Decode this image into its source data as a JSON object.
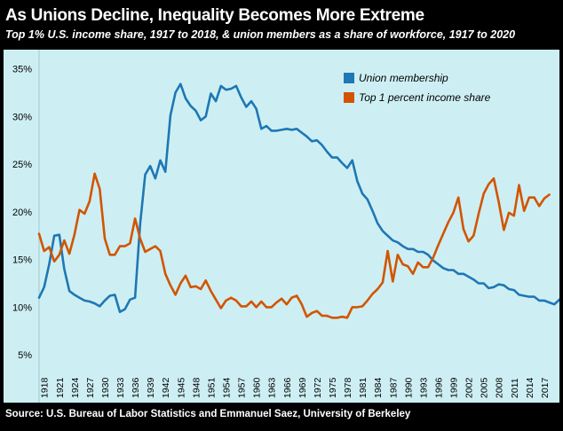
{
  "header": {
    "title": "As Unions Decline, Inequality Becomes More Extreme",
    "subtitle": "Top 1% U.S. income share, 1917 to 2018, & union members as a share of workforce, 1917 to 2020"
  },
  "footer": {
    "source": "Source: U.S. Bureau of Labor Statistics and Emmanuel Saez, University of Berkeley"
  },
  "colors": {
    "frame": "#000000",
    "plot_background": "#cdeff3",
    "union": "#1f77b4",
    "income": "#d35400",
    "text_light": "#ffffff"
  },
  "chart_data": {
    "type": "line",
    "title": "As Unions Decline, Inequality Becomes More Extreme",
    "subtitle": "Top 1% U.S. income share, 1917 to 2018, & union members as a share of workforce, 1917 to 2020",
    "xlabel": "",
    "ylabel": "",
    "xlim": [
      1917,
      2020
    ],
    "ylim": [
      0,
      37
    ],
    "y_ticks": [
      5,
      10,
      15,
      20,
      25,
      30,
      35
    ],
    "y_tick_labels": [
      "5%",
      "10%",
      "15%",
      "20%",
      "25%",
      "30%",
      "35%"
    ],
    "x_tick_labels": [
      "1918",
      "1921",
      "1924",
      "1927",
      "1930",
      "1933",
      "1936",
      "1939",
      "1942",
      "1945",
      "1948",
      "1951",
      "1954",
      "1957",
      "1960",
      "1963",
      "1966",
      "1969",
      "1972",
      "1975",
      "1978",
      "1981",
      "1984",
      "1987",
      "1990",
      "1993",
      "1996",
      "1999",
      "2002",
      "2005",
      "2008",
      "2011",
      "2014",
      "2017"
    ],
    "grid": false,
    "legend_position": "top-right",
    "series": [
      {
        "name": "Union membership",
        "color": "#1f77b4",
        "x": [
          1917,
          1918,
          1919,
          1920,
          1921,
          1922,
          1923,
          1924,
          1925,
          1926,
          1927,
          1928,
          1929,
          1930,
          1931,
          1932,
          1933,
          1934,
          1935,
          1936,
          1937,
          1938,
          1939,
          1940,
          1941,
          1942,
          1943,
          1944,
          1945,
          1946,
          1947,
          1948,
          1949,
          1950,
          1951,
          1952,
          1953,
          1954,
          1955,
          1956,
          1957,
          1958,
          1959,
          1960,
          1961,
          1962,
          1963,
          1964,
          1965,
          1966,
          1967,
          1968,
          1969,
          1970,
          1971,
          1972,
          1973,
          1974,
          1975,
          1976,
          1977,
          1978,
          1979,
          1980,
          1981,
          1982,
          1983,
          1984,
          1985,
          1986,
          1987,
          1988,
          1989,
          1990,
          1991,
          1992,
          1993,
          1994,
          1995,
          1996,
          1997,
          1998,
          1999,
          2000,
          2001,
          2002,
          2003,
          2004,
          2005,
          2006,
          2007,
          2008,
          2009,
          2010,
          2011,
          2012,
          2013,
          2014,
          2015,
          2016,
          2017,
          2018,
          2019,
          2020
        ],
        "y": [
          11.0,
          12.1,
          14.5,
          17.5,
          17.6,
          14.0,
          11.7,
          11.3,
          11.0,
          10.7,
          10.6,
          10.4,
          10.1,
          10.7,
          11.2,
          11.3,
          9.5,
          9.8,
          10.8,
          11.0,
          18.7,
          23.9,
          24.8,
          23.5,
          25.4,
          24.2,
          30.1,
          32.5,
          33.4,
          31.9,
          31.1,
          30.6,
          29.6,
          30.0,
          32.4,
          31.6,
          33.2,
          32.8,
          32.9,
          33.2,
          32.0,
          31.0,
          31.6,
          30.8,
          28.7,
          29.0,
          28.5,
          28.5,
          28.6,
          28.7,
          28.6,
          28.7,
          28.3,
          27.9,
          27.4,
          27.5,
          27.0,
          26.3,
          25.7,
          25.7,
          25.1,
          24.6,
          25.4,
          23.2,
          21.9,
          21.3,
          20.1,
          18.8,
          18.0,
          17.5,
          17.0,
          16.8,
          16.4,
          16.1,
          16.1,
          15.8,
          15.8,
          15.5,
          14.9,
          14.5,
          14.1,
          13.9,
          13.9,
          13.5,
          13.5,
          13.2,
          12.9,
          12.5,
          12.5,
          12.0,
          12.1,
          12.4,
          12.3,
          11.9,
          11.8,
          11.3,
          11.2,
          11.1,
          11.1,
          10.7,
          10.7,
          10.5,
          10.3,
          10.8
        ]
      },
      {
        "name": "Top 1 percent income share",
        "color": "#d35400",
        "x": [
          1917,
          1918,
          1919,
          1920,
          1921,
          1922,
          1923,
          1924,
          1925,
          1926,
          1927,
          1928,
          1929,
          1930,
          1931,
          1932,
          1933,
          1934,
          1935,
          1936,
          1937,
          1938,
          1939,
          1940,
          1941,
          1942,
          1943,
          1944,
          1945,
          1946,
          1947,
          1948,
          1949,
          1950,
          1951,
          1952,
          1953,
          1954,
          1955,
          1956,
          1957,
          1958,
          1959,
          1960,
          1961,
          1962,
          1963,
          1964,
          1965,
          1966,
          1967,
          1968,
          1969,
          1970,
          1971,
          1972,
          1973,
          1974,
          1975,
          1976,
          1977,
          1978,
          1979,
          1980,
          1981,
          1982,
          1983,
          1984,
          1985,
          1986,
          1987,
          1988,
          1989,
          1990,
          1991,
          1992,
          1993,
          1994,
          1995,
          1996,
          1997,
          1998,
          1999,
          2000,
          2001,
          2002,
          2003,
          2004,
          2005,
          2006,
          2007,
          2008,
          2009,
          2010,
          2011,
          2012,
          2013,
          2014,
          2015,
          2016,
          2017,
          2018
        ],
        "y": [
          17.7,
          15.9,
          16.3,
          14.8,
          15.5,
          17.0,
          15.6,
          17.6,
          20.2,
          19.8,
          21.1,
          24.0,
          22.4,
          17.2,
          15.5,
          15.5,
          16.4,
          16.4,
          16.7,
          19.3,
          17.2,
          15.8,
          16.1,
          16.4,
          15.9,
          13.5,
          12.3,
          11.3,
          12.5,
          13.3,
          12.1,
          12.2,
          11.9,
          12.8,
          11.7,
          10.8,
          9.9,
          10.7,
          11.0,
          10.7,
          10.1,
          10.1,
          10.6,
          10.0,
          10.6,
          10.0,
          10.0,
          10.5,
          10.9,
          10.3,
          11.0,
          11.2,
          10.3,
          9.0,
          9.4,
          9.6,
          9.1,
          9.1,
          8.9,
          8.9,
          9.0,
          8.9,
          10.0,
          10.0,
          10.1,
          10.7,
          11.4,
          11.9,
          12.6,
          15.9,
          12.7,
          15.5,
          14.5,
          14.3,
          13.5,
          14.7,
          14.2,
          14.2,
          15.2,
          16.5,
          17.7,
          18.9,
          19.9,
          21.5,
          18.2,
          16.9,
          17.5,
          19.8,
          21.9,
          22.9,
          23.5,
          21.0,
          18.1,
          19.9,
          19.6,
          22.8,
          20.1,
          21.5,
          21.5,
          20.6,
          21.4,
          21.8
        ]
      }
    ]
  }
}
